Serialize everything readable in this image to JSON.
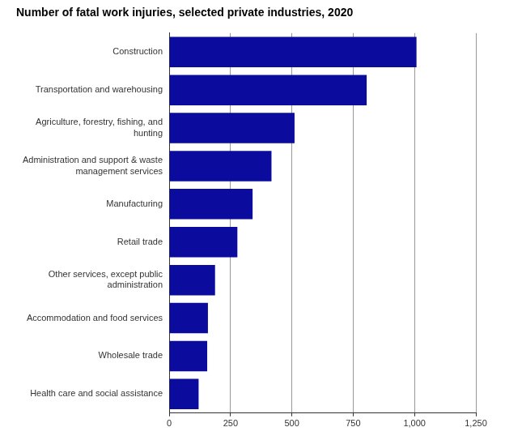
{
  "chart_data": {
    "type": "bar",
    "orientation": "horizontal",
    "title": "Number of fatal work injuries, selected private industries, 2020",
    "categories": [
      "Construction",
      "Transportation and warehousing",
      "Agriculture, forestry, fishing, and hunting",
      "Administration and support & waste management services",
      "Manufacturing",
      "Retail trade",
      "Other services, except public administration",
      "Accommodation and food services",
      "Wholesale trade",
      "Health care and social assistance"
    ],
    "values": [
      1008,
      805,
      511,
      417,
      340,
      278,
      187,
      158,
      155,
      120
    ],
    "color": "#0b0b9e",
    "xlim": [
      0,
      1250
    ],
    "xticks": [
      0,
      250,
      500,
      750,
      {
        "value": 1000,
        "label": "1,000"
      },
      {
        "value": 1250,
        "label": "1,250"
      }
    ],
    "grid": true
  }
}
